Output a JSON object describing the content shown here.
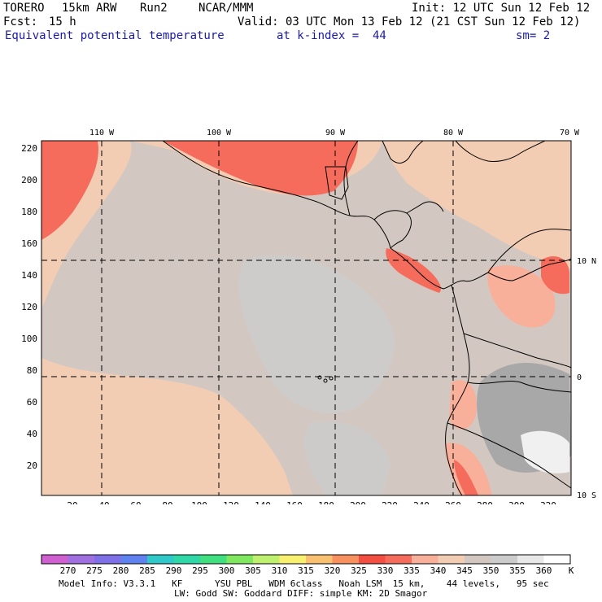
{
  "header": {
    "model": "TORERO",
    "resolution": "15km ARW",
    "run": "Run2",
    "org": "NCAR/MMM",
    "init": "Init: 12 UTC Sun 12 Feb 12",
    "fcst_label": "Fcst:",
    "fcst_value": "15 h",
    "valid": "Valid: 03 UTC Mon 13 Feb 12 (21 CST Sun 12 Feb 12)",
    "field": "Equivalent potential temperature",
    "level": "at k-index =  44",
    "smooth": "sm= 2"
  },
  "map": {
    "lon_labels_top": [
      "110 W",
      "100 W",
      "90 W",
      "80 W",
      "70 W"
    ],
    "lat_labels_right": [
      "10 N",
      "0",
      "10 S"
    ],
    "y_ticks": [
      "20",
      "40",
      "60",
      "80",
      "100",
      "120",
      "140",
      "160",
      "180",
      "200",
      "220"
    ],
    "x_ticks": [
      "20",
      "40",
      "60",
      "80",
      "100",
      "120",
      "140",
      "160",
      "180",
      "200",
      "220",
      "240",
      "260",
      "280",
      "300",
      "320"
    ],
    "colors": {
      "background": "#d3c8c1",
      "light": "#f2cdb4",
      "cool_grey": "#cccccc",
      "dark_grey": "#a8a8a8",
      "warm": "#f8b09a",
      "hot": "#f56c5c",
      "hottest": "#f24e42",
      "land_line": "#000000"
    }
  },
  "colorbar": {
    "labels": [
      "270",
      "275",
      "280",
      "285",
      "290",
      "295",
      "300",
      "305",
      "310",
      "315",
      "320",
      "325",
      "330",
      "335",
      "340",
      "345",
      "350",
      "355",
      "360"
    ],
    "unit": "K",
    "colors": [
      "#d060d0",
      "#a070e0",
      "#8070e8",
      "#5f82f0",
      "#30c8c8",
      "#30d8a8",
      "#40e080",
      "#80e860",
      "#c0f070",
      "#f8f070",
      "#f8c070",
      "#f89060",
      "#f24e42",
      "#f56c5c",
      "#f8b09a",
      "#f2cdb4",
      "#d3c8c1",
      "#cccccc",
      "#e8e8e8",
      "#ffffff"
    ]
  },
  "footer": {
    "line1": "Model Info: V3.3.1   KF      YSU PBL   WDM 6class   Noah LSM  15 km,    44 levels,   95 sec",
    "line2": "LW: Godd SW: Goddard DIFF: simple KM: 2D Smagor"
  }
}
